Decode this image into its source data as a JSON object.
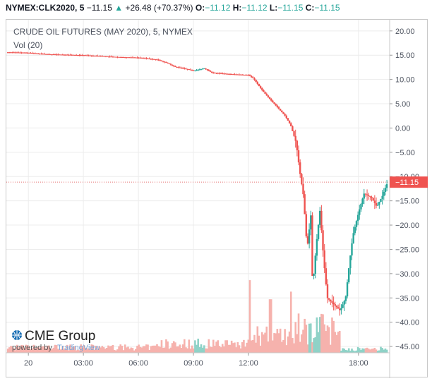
{
  "header": {
    "symbol": "NYMEX:CLK2020, 5",
    "last": "−11.15",
    "change": "+26.48 (+70.37%)",
    "o_label": "O:",
    "o_value": "−11.12",
    "h_label": "H:",
    "h_value": "−11.12",
    "l_label": "L:",
    "l_value": "−11.15",
    "c_label": "C:",
    "c_value": "−11.15"
  },
  "legend": {
    "title": "CRUDE OIL FUTURES (MAY 2020), 5, NYMEX",
    "volume_label": "Vol (20)"
  },
  "branding": {
    "logo": "CME Group",
    "powered_by": "powered by",
    "provider": "TradingView"
  },
  "current_price_tag": "−11.15",
  "colors": {
    "up": "#26a69a",
    "down": "#ef5350",
    "up_vol": "#8fd2c7",
    "down_vol": "#f6b2ad",
    "grid": "#ececec",
    "price_line": "#e57373"
  },
  "chart_data": {
    "type": "candlestick",
    "title": "CRUDE OIL FUTURES (MAY 2020), 5, NYMEX",
    "x_tick_labels": [
      "20",
      "03:00",
      "06:00",
      "09:00",
      "12:00",
      "18:00"
    ],
    "x_ticks": [
      0,
      3,
      6,
      9,
      12,
      18
    ],
    "x_range": [
      -1.2,
      19.7
    ],
    "y_ticks": [
      20,
      15,
      10,
      5,
      0,
      -5,
      -10,
      -15,
      -20,
      -25,
      -30,
      -35,
      -40,
      -45
    ],
    "y_tick_labels": [
      "20.00",
      "15.00",
      "10.00",
      "5.00",
      "0.00",
      "−5.00",
      "−10.00",
      "−15.00",
      "−20.00",
      "−25.00",
      "−30.00",
      "−35.00",
      "−40.00",
      "−45.00"
    ],
    "ylim": [
      -46.3,
      22.3
    ],
    "current_price": -11.15,
    "grid": true,
    "series": [
      {
        "name": "price",
        "points": [
          [
            -1.2,
            15.6
          ],
          [
            0,
            15.5
          ],
          [
            1,
            15.2
          ],
          [
            2,
            15.1
          ],
          [
            3,
            15.0
          ],
          [
            4,
            14.8
          ],
          [
            5,
            14.6
          ],
          [
            6,
            14.5
          ],
          [
            7,
            14.1
          ],
          [
            7.5,
            13.5
          ],
          [
            8,
            12.6
          ],
          [
            8.7,
            12.1
          ],
          [
            9,
            11.8
          ],
          [
            9.6,
            12.3
          ],
          [
            10,
            11.4
          ],
          [
            11,
            11.1
          ],
          [
            12,
            10.9
          ],
          [
            12.3,
            10.1
          ],
          [
            12.6,
            8.5
          ],
          [
            12.9,
            7.1
          ],
          [
            13.3,
            5.4
          ],
          [
            13.6,
            4.2
          ],
          [
            14,
            2.5
          ],
          [
            14.3,
            0.6
          ],
          [
            14.6,
            -3.0
          ],
          [
            14.8,
            -9.0
          ],
          [
            15.0,
            -14.0
          ],
          [
            15.2,
            -25.0
          ],
          [
            15.4,
            -18.0
          ],
          [
            15.5,
            -33.0
          ],
          [
            15.7,
            -24.0
          ],
          [
            15.9,
            -17.0
          ],
          [
            16.1,
            -27.0
          ],
          [
            16.3,
            -35.0
          ],
          [
            16.7,
            -36.5
          ],
          [
            17.0,
            -37.6
          ],
          [
            17.3,
            -35.0
          ],
          [
            17.5,
            -28.0
          ],
          [
            17.7,
            -22.0
          ],
          [
            18.0,
            -17.5
          ],
          [
            18.3,
            -13.5
          ],
          [
            18.7,
            -14.3
          ],
          [
            19.0,
            -16.2
          ],
          [
            19.3,
            -14.0
          ],
          [
            19.5,
            -12.0
          ],
          [
            19.6,
            -11.15
          ]
        ]
      }
    ],
    "volume_ylim": [
      0,
      120
    ]
  }
}
